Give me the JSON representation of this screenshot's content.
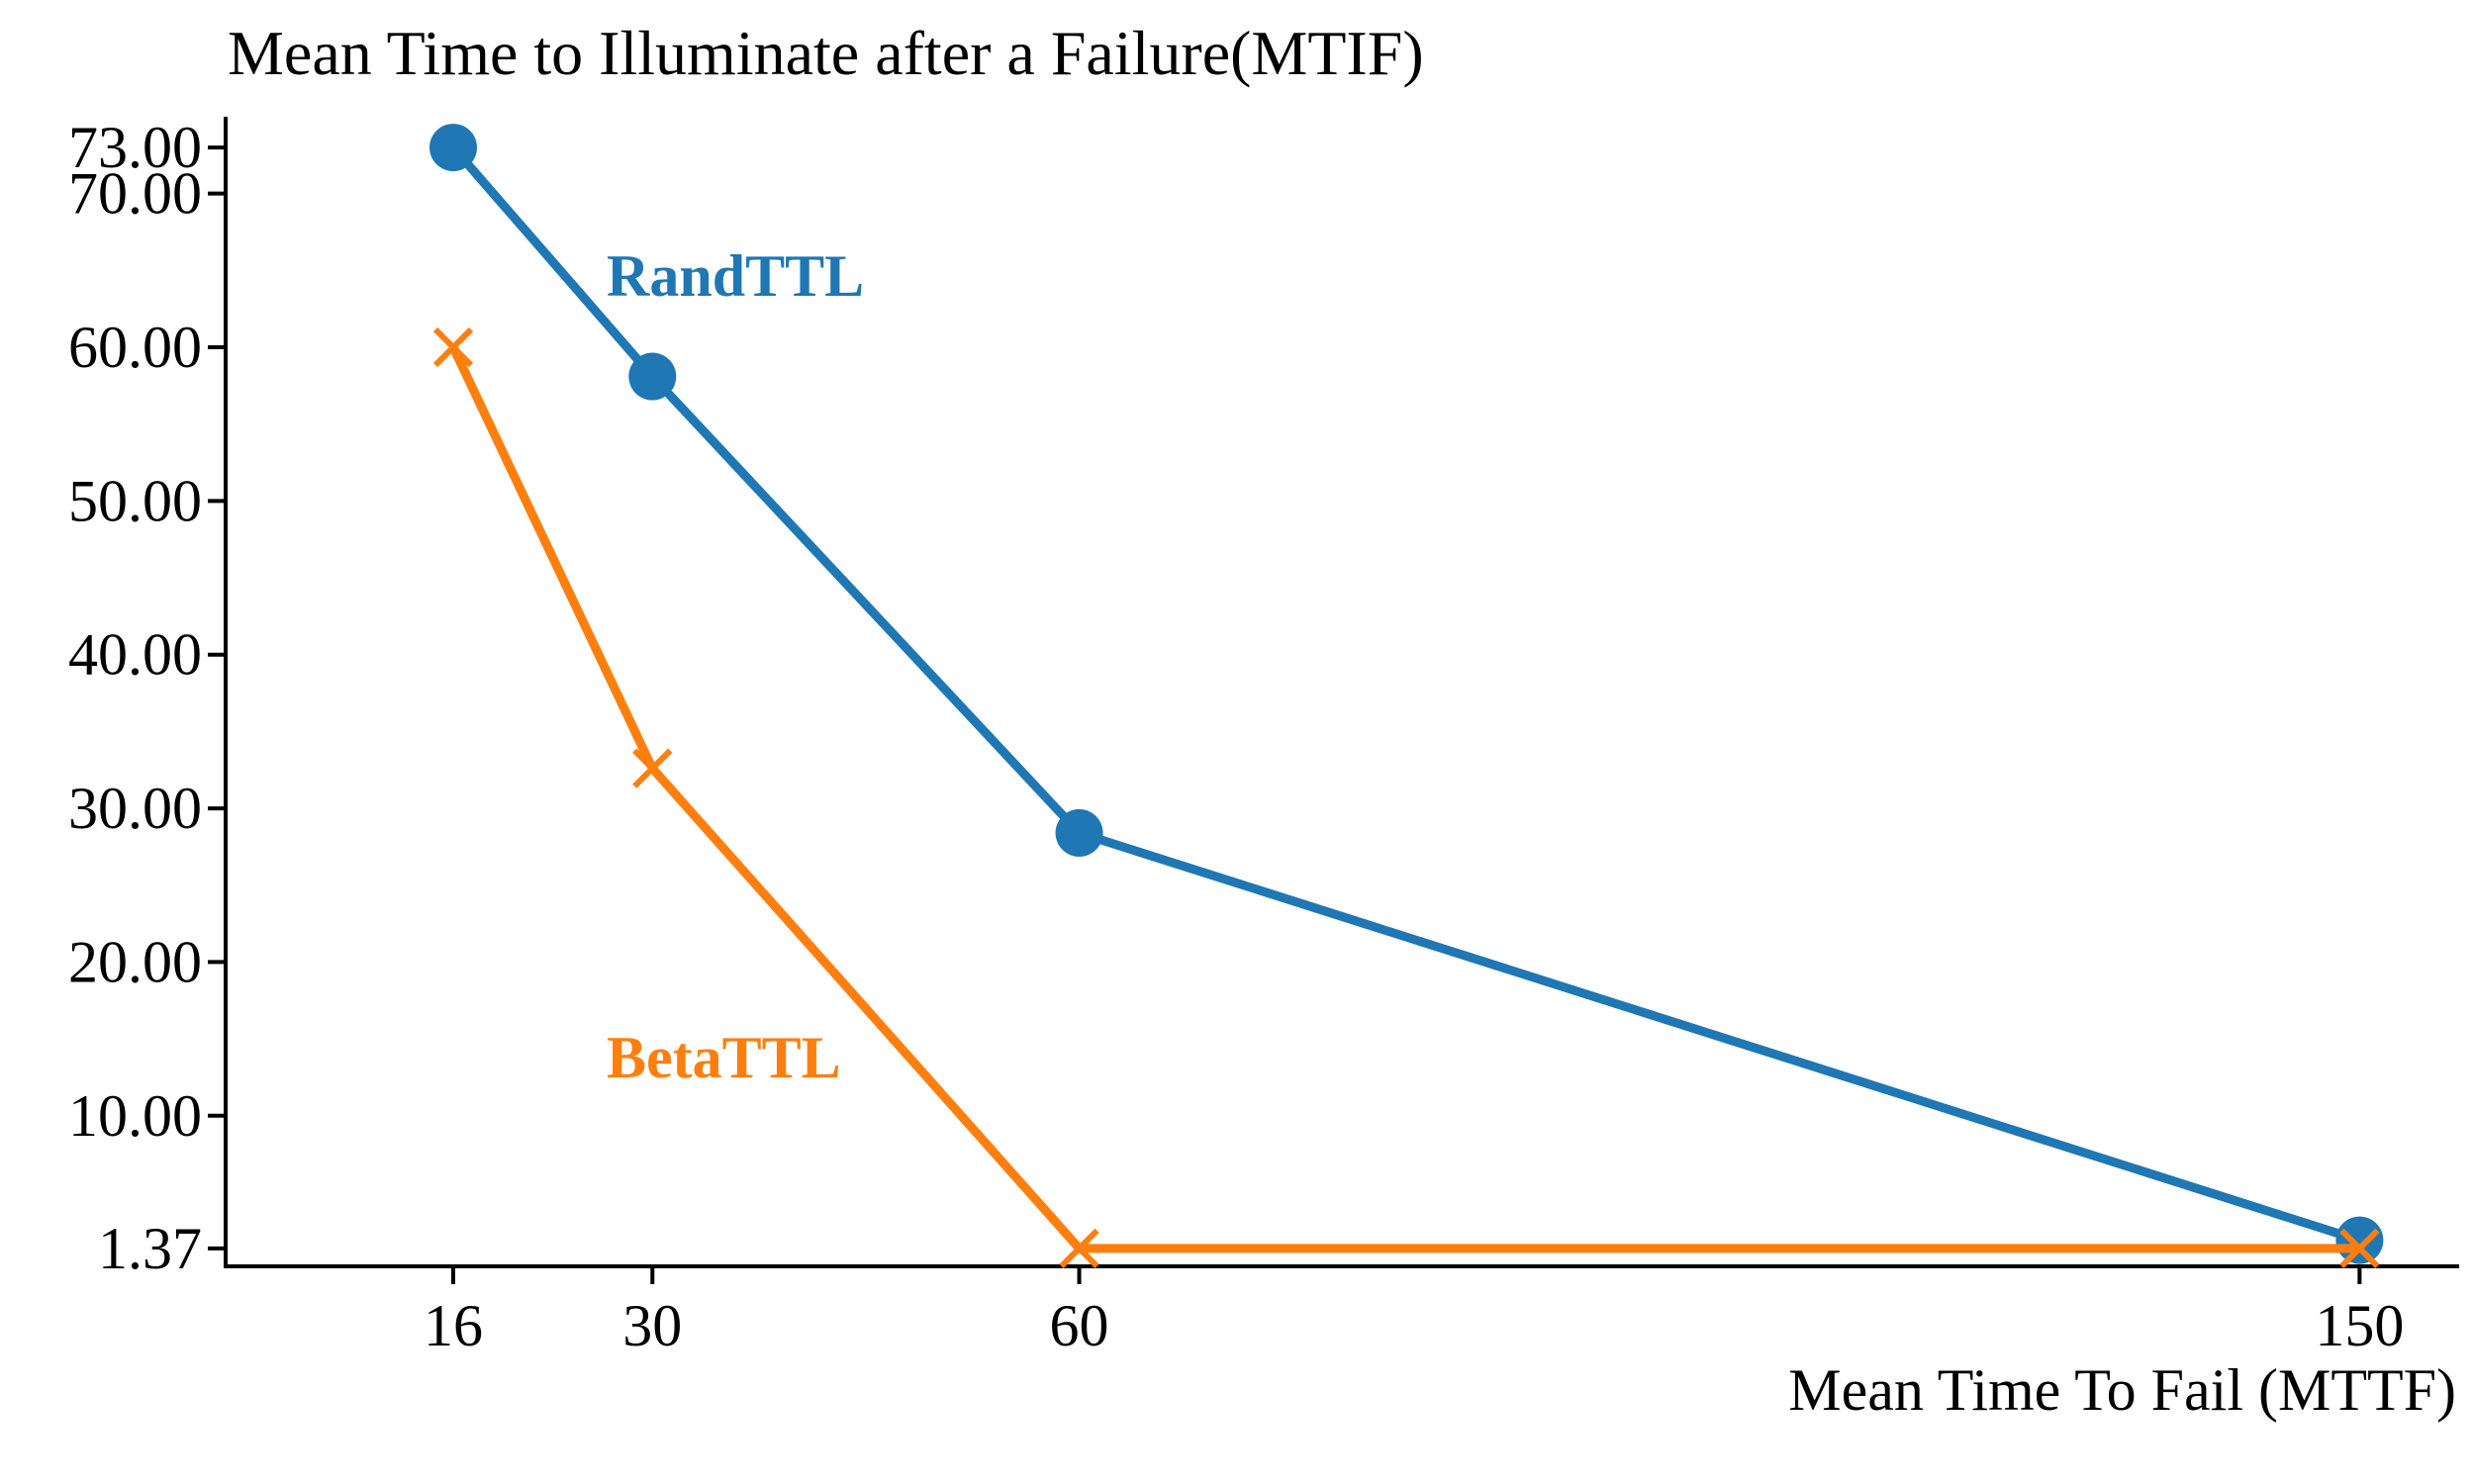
{
  "chart_data": {
    "type": "line",
    "title": "Mean Time to Illuminate after a Failure(MTIF)",
    "xlabel": "Mean Time To Fail (MTTF)",
    "ylabel": "",
    "x": [
      16,
      30,
      60,
      150
    ],
    "x_tick_labels": [
      "16",
      "30",
      "60",
      "150"
    ],
    "xlim": [
      0,
      157
    ],
    "y_ticks": [
      1.37,
      10,
      20,
      30,
      40,
      50,
      60,
      70,
      73
    ],
    "y_tick_labels": [
      "1.37",
      "10.00",
      "20.00",
      "30.00",
      "40.00",
      "50.00",
      "60.00",
      "70.00",
      "73.00"
    ],
    "ylim": [
      0.2,
      75
    ],
    "grid": false,
    "legend": "inline labels",
    "series": [
      {
        "name": "RandTTL",
        "values": [
          73.0,
          58.1,
          28.4,
          1.9
        ],
        "marker": "circle",
        "color": "#1f77b4"
      },
      {
        "name": "BetaTTL",
        "values": [
          60.0,
          32.6,
          1.37,
          1.37
        ],
        "marker": "x",
        "color": "#ff7f0e"
      }
    ]
  }
}
